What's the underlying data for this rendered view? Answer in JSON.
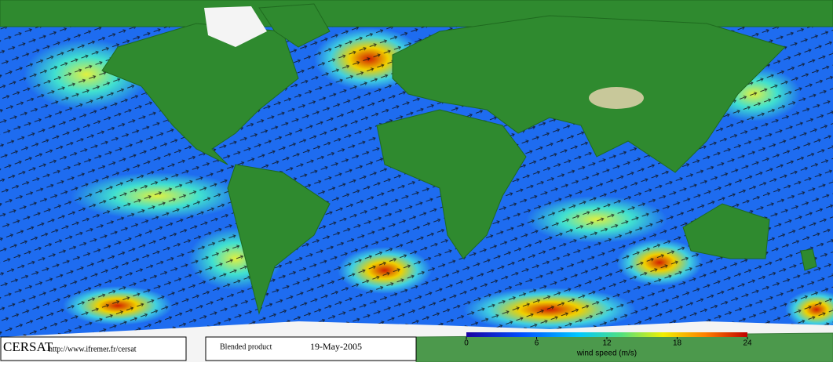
{
  "footer": {
    "logo": "CERSAT",
    "url": "http://www.ifremer.fr/cersat",
    "product": "Blended product",
    "date": "19-May-2005"
  },
  "colorbar": {
    "label": "wind speed (m/s)",
    "range": [
      0,
      24
    ],
    "ticks": [
      0,
      6,
      12,
      18,
      24
    ]
  }
}
